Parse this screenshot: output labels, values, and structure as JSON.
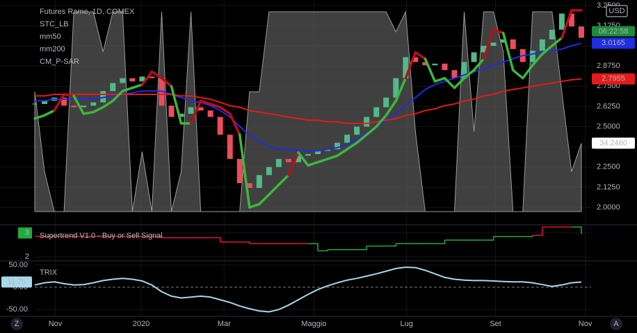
{
  "chart_data": [
    {
      "type": "candlestick",
      "title": "Futures Rame, 1D, COMEX",
      "currency": "USD",
      "countdown": "06:22:58",
      "x": [
        0,
        1,
        2,
        3,
        4,
        5,
        6,
        7,
        8,
        9,
        10,
        11,
        12,
        13,
        14,
        15,
        16,
        17,
        18,
        19,
        20,
        21,
        22,
        23,
        24,
        25,
        26,
        27,
        28,
        29,
        30,
        31,
        32,
        33,
        34,
        35,
        36,
        37,
        38,
        39,
        40,
        41,
        42,
        43,
        44,
        45,
        46,
        47,
        48,
        49,
        50,
        51,
        52,
        53,
        54,
        55,
        56
      ],
      "xlim": [
        0,
        57
      ],
      "ylim": [
        1.901,
        3.284
      ],
      "yticks": [
        {
          "value": 2,
          "label": "2.0000"
        },
        {
          "value": 2.125,
          "label": "2.1250"
        },
        {
          "value": 2.25,
          "label": "2.2500"
        },
        {
          "value": 2.375,
          "label": "2.3750"
        },
        {
          "value": 2.5,
          "label": "2.5000"
        },
        {
          "value": 2.625,
          "label": "2.6250"
        },
        {
          "value": 2.75,
          "label": "2.7500"
        },
        {
          "value": 2.875,
          "label": "2.8750"
        },
        {
          "value": 3,
          "label": "3.0000"
        },
        {
          "value": 3.125,
          "label": "3.1250"
        },
        {
          "value": 3.25,
          "label": "3.2500"
        }
      ],
      "y2lim": [
        -5.9,
        105.9
      ],
      "up_color": "#53b987",
      "down_color": "#eb4d5c",
      "values": [
        2.64,
        2.66,
        2.68,
        2.63,
        2.62,
        2.63,
        2.65,
        2.72,
        2.77,
        2.8,
        2.78,
        2.81,
        2.8,
        2.63,
        2.56,
        2.58,
        2.62,
        2.6,
        2.56,
        2.45,
        2.3,
        2.15,
        2.12,
        2.2,
        2.25,
        2.3,
        2.28,
        2.32,
        2.33,
        2.35,
        2.36,
        2.4,
        2.45,
        2.5,
        2.56,
        2.62,
        2.68,
        2.8,
        2.93,
        2.9,
        2.88,
        2.89,
        2.85,
        2.8,
        2.9,
        2.96,
        3.0,
        3.02,
        3.04,
        2.98,
        2.9,
        2.97,
        3.04,
        3.1,
        3.2,
        3.12,
        3.05
      ],
      "series": [
        {
          "name": "STC_LB",
          "type": "area",
          "axis": "y2",
          "color": "#555555",
          "value_label": "34.2460",
          "values": [
            60,
            20,
            0,
            0,
            100,
            100,
            100,
            80,
            100,
            100,
            0,
            30,
            0,
            100,
            0,
            20,
            100,
            0,
            0,
            0,
            0,
            0,
            60,
            60,
            100,
            100,
            100,
            100,
            100,
            100,
            100,
            100,
            100,
            100,
            100,
            100,
            100,
            90,
            100,
            40,
            0,
            0,
            0,
            0,
            100,
            40,
            100,
            100,
            80,
            0,
            0,
            100,
            100,
            100,
            60,
            20,
            34.246
          ]
        },
        {
          "name": "mm50",
          "type": "line",
          "color": "#1e2ee0",
          "values": [
            2.66,
            2.66,
            2.67,
            2.67,
            2.67,
            2.67,
            2.67,
            2.68,
            2.69,
            2.7,
            2.71,
            2.72,
            2.72,
            2.72,
            2.7,
            2.68,
            2.66,
            2.65,
            2.63,
            2.6,
            2.56,
            2.5,
            2.45,
            2.41,
            2.38,
            2.36,
            2.36,
            2.35,
            2.35,
            2.35,
            2.36,
            2.37,
            2.39,
            2.42,
            2.46,
            2.5,
            2.54,
            2.58,
            2.63,
            2.68,
            2.73,
            2.76,
            2.78,
            2.8,
            2.82,
            2.84,
            2.86,
            2.88,
            2.9,
            2.92,
            2.94,
            2.95,
            2.96,
            2.97,
            2.98,
            3.0,
            3.0165
          ]
        },
        {
          "name": "mm200",
          "type": "line",
          "color": "#e31b1b",
          "values": [
            2.69,
            2.69,
            2.7,
            2.7,
            2.7,
            2.7,
            2.7,
            2.7,
            2.7,
            2.7,
            2.7,
            2.7,
            2.7,
            2.7,
            2.7,
            2.69,
            2.69,
            2.68,
            2.67,
            2.65,
            2.63,
            2.62,
            2.6,
            2.59,
            2.58,
            2.57,
            2.56,
            2.55,
            2.54,
            2.54,
            2.53,
            2.53,
            2.52,
            2.52,
            2.52,
            2.53,
            2.54,
            2.55,
            2.57,
            2.58,
            2.6,
            2.61,
            2.63,
            2.64,
            2.66,
            2.67,
            2.69,
            2.7,
            2.72,
            2.73,
            2.74,
            2.75,
            2.76,
            2.77,
            2.78,
            2.79,
            2.7955
          ]
        },
        {
          "name": "CM_P-SAR",
          "type": "sar",
          "up_color": "#3cb83c",
          "down_color": "#b5101a",
          "values": [
            2.55,
            2.57,
            2.6,
            2.7,
            2.69,
            2.58,
            2.59,
            2.62,
            2.66,
            2.72,
            2.74,
            2.76,
            2.84,
            2.8,
            2.75,
            2.52,
            2.52,
            2.66,
            2.64,
            2.62,
            2.58,
            2.45,
            2.0,
            2.02,
            2.08,
            2.14,
            2.2,
            2.34,
            2.26,
            2.28,
            2.3,
            2.32,
            2.36,
            2.4,
            2.45,
            2.5,
            2.57,
            2.66,
            2.8,
            2.96,
            2.92,
            2.78,
            2.8,
            2.74,
            2.8,
            2.85,
            2.92,
            3.1,
            3.08,
            2.85,
            2.8,
            2.88,
            2.95,
            3.0,
            3.05,
            3.22,
            3.22
          ]
        }
      ]
    },
    {
      "type": "step",
      "title": "Supertrend V1.0 - Buy or Sell Signal",
      "x": [
        0,
        1,
        2,
        3,
        4,
        5,
        6,
        7,
        8,
        9,
        10,
        11,
        12,
        13,
        14,
        15,
        16,
        17,
        18,
        19,
        20,
        21,
        22,
        23,
        24,
        25,
        26,
        27,
        28,
        29,
        30,
        31,
        32,
        33,
        34,
        35,
        36,
        37,
        38,
        39,
        40,
        41,
        42,
        43,
        44,
        45,
        46,
        47,
        48,
        49,
        50,
        51,
        52,
        53,
        54,
        55,
        56
      ],
      "xlim": [
        0,
        57
      ],
      "ylim": [
        1.857,
        3.286
      ],
      "yticks": [
        2,
        3
      ],
      "label_color": "#22ab3c",
      "values": [
        2.86,
        2.86,
        2.86,
        2.86,
        2.86,
        2.86,
        2.86,
        2.86,
        2.86,
        2.86,
        2.86,
        2.86,
        2.86,
        2.8,
        2.8,
        2.8,
        2.8,
        2.8,
        2.8,
        2.62,
        2.62,
        2.62,
        2.55,
        2.55,
        2.55,
        2.55,
        2.55,
        2.55,
        2.55,
        2.25,
        2.3,
        2.3,
        2.3,
        2.3,
        2.45,
        2.45,
        2.45,
        2.55,
        2.55,
        2.55,
        2.55,
        2.55,
        2.7,
        2.7,
        2.7,
        2.7,
        2.7,
        2.85,
        2.85,
        2.85,
        2.85,
        2.9,
        3.25,
        3.25,
        3.25,
        3.25,
        2.95
      ],
      "colors": [
        "#e0143c",
        "#e0143c",
        "#e0143c",
        "#e0143c",
        "#e0143c",
        "#e0143c",
        "#e0143c",
        "#e0143c",
        "#e0143c",
        "#e0143c",
        "#e0143c",
        "#e0143c",
        "#e0143c",
        "#e0143c",
        "#e0143c",
        "#e0143c",
        "#e0143c",
        "#e0143c",
        "#e0143c",
        "#e0143c",
        "#e0143c",
        "#e0143c",
        "#e0143c",
        "#e0143c",
        "#e0143c",
        "#e0143c",
        "#e0143c",
        "#e0143c",
        "#e0143c",
        "#22ab3c",
        "#22ab3c",
        "#22ab3c",
        "#22ab3c",
        "#22ab3c",
        "#22ab3c",
        "#22ab3c",
        "#22ab3c",
        "#22ab3c",
        "#22ab3c",
        "#22ab3c",
        "#22ab3c",
        "#22ab3c",
        "#22ab3c",
        "#22ab3c",
        "#22ab3c",
        "#22ab3c",
        "#22ab3c",
        "#22ab3c",
        "#22ab3c",
        "#22ab3c",
        "#22ab3c",
        "#22ab3c",
        "#e0143c",
        "#e0143c",
        "#e0143c",
        "#e0143c",
        "#22ab3c"
      ]
    },
    {
      "type": "line",
      "title": "TRIX",
      "color": "#a8d8ea",
      "zero_line": true,
      "x": [
        0,
        1,
        2,
        3,
        4,
        5,
        6,
        7,
        8,
        9,
        10,
        11,
        12,
        13,
        14,
        15,
        16,
        17,
        18,
        19,
        20,
        21,
        22,
        23,
        24,
        25,
        26,
        27,
        28,
        29,
        30,
        31,
        32,
        33,
        34,
        35,
        36,
        37,
        38,
        39,
        40,
        41,
        42,
        43,
        44,
        45,
        46,
        47,
        48,
        49,
        50,
        51,
        52,
        53,
        54,
        55,
        56
      ],
      "xlim": [
        0,
        57
      ],
      "ylim": [
        -63.6,
        56
      ],
      "yticks": [
        {
          "value": 50,
          "label": "50.00"
        },
        {
          "value": 0,
          "label": "0.00"
        },
        {
          "value": -50,
          "label": "-50.00"
        }
      ],
      "xticks": [
        {
          "value": 2.1,
          "label": "Nov"
        },
        {
          "value": 10.9,
          "label": "2020"
        },
        {
          "value": 19.4,
          "label": "Mar"
        },
        {
          "value": 28.6,
          "label": "Maggio"
        },
        {
          "value": 38.1,
          "label": "Lug"
        },
        {
          "value": 47.2,
          "label": "Set"
        },
        {
          "value": 56.4,
          "label": "Nov"
        }
      ],
      "values": [
        5,
        10,
        12,
        8,
        5,
        6,
        10,
        15,
        18,
        20,
        18,
        14,
        5,
        -10,
        -20,
        -24,
        -22,
        -20,
        -22,
        -28,
        -34,
        -42,
        -48,
        -53,
        -55,
        -50,
        -40,
        -28,
        -16,
        -5,
        3,
        10,
        16,
        20,
        25,
        30,
        36,
        42,
        45,
        44,
        38,
        30,
        22,
        18,
        16,
        15,
        15,
        14,
        13,
        12,
        12,
        10,
        6,
        2,
        5,
        10,
        11.75
      ]
    }
  ],
  "footer": {
    "left_icon": "Z",
    "right_icon": "A"
  }
}
